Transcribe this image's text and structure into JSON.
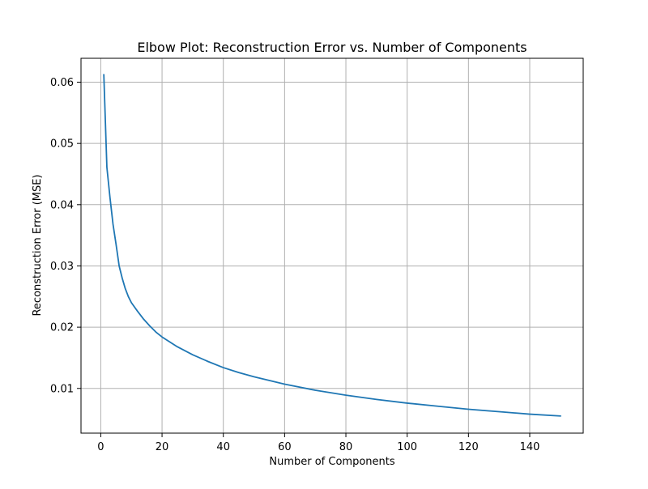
{
  "chart_data": {
    "type": "line",
    "title": "Elbow Plot: Reconstruction Error vs. Number of Components",
    "xlabel": "Number of Components",
    "ylabel": "Reconstruction Error (MSE)",
    "xlim": [
      -6.45,
      157.45
    ],
    "ylim": [
      0.0027,
      0.0639
    ],
    "xticks": [
      0,
      20,
      40,
      60,
      80,
      100,
      120,
      140
    ],
    "xtick_labels": [
      "0",
      "20",
      "40",
      "60",
      "80",
      "100",
      "120",
      "140"
    ],
    "yticks": [
      0.01,
      0.02,
      0.03,
      0.04,
      0.05,
      0.06
    ],
    "ytick_labels": [
      "0.01",
      "0.02",
      "0.03",
      "0.04",
      "0.05",
      "0.06"
    ],
    "grid": true,
    "legend": "none",
    "series": [
      {
        "color": "#1f77b4",
        "x": [
          1,
          2,
          3,
          4,
          5,
          6,
          7,
          8,
          9,
          10,
          12,
          14,
          16,
          18,
          20,
          25,
          30,
          35,
          40,
          45,
          50,
          60,
          70,
          80,
          90,
          100,
          110,
          120,
          130,
          140,
          150
        ],
        "y": [
          0.0612,
          0.0461,
          0.0412,
          0.0368,
          0.0335,
          0.03,
          0.028,
          0.0263,
          0.025,
          0.024,
          0.0226,
          0.0213,
          0.0202,
          0.0192,
          0.0184,
          0.0168,
          0.0155,
          0.0144,
          0.0134,
          0.0126,
          0.0119,
          0.0107,
          0.0097,
          0.0089,
          0.0082,
          0.0076,
          0.0071,
          0.0066,
          0.0062,
          0.0058,
          0.0055
        ]
      }
    ]
  },
  "colors": {
    "line": "#1f77b4",
    "grid": "#b0b0b0",
    "axes": "#000000"
  }
}
